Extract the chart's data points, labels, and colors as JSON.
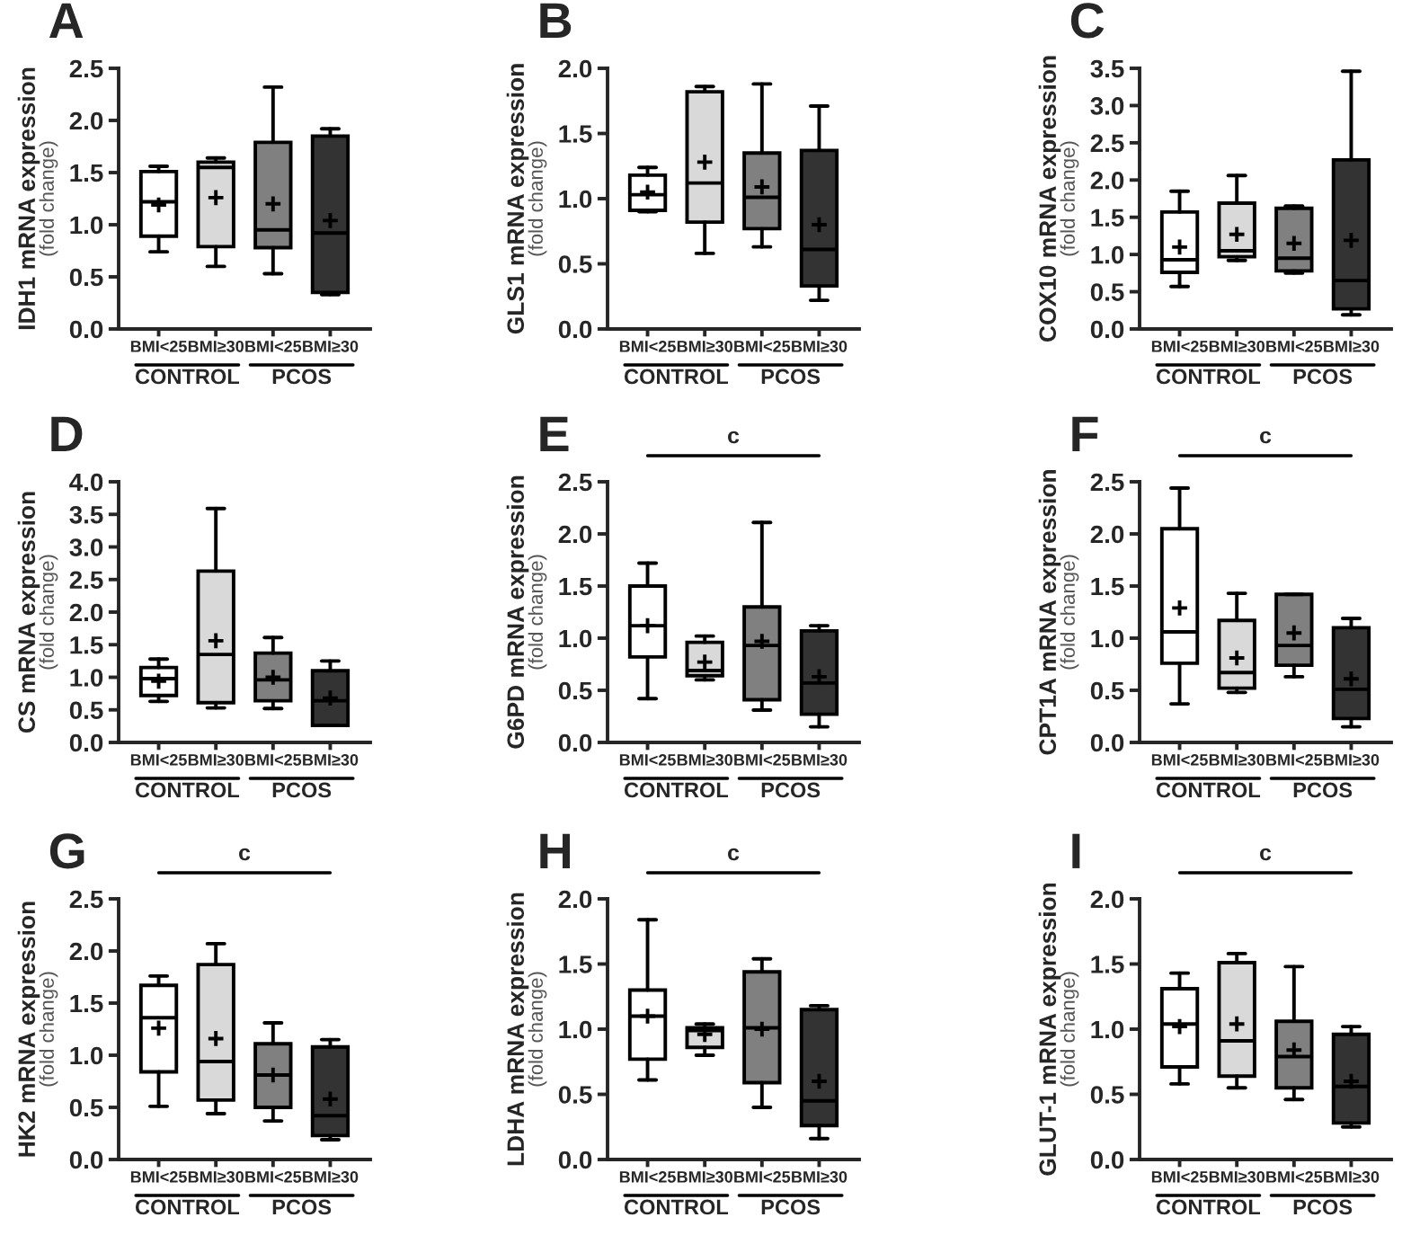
{
  "chart_data": [
    {
      "type": "box",
      "title": "A",
      "ylabel": "IDH1 mRNA expression\n(fold change)",
      "categories": [
        "BMI<25",
        "BMI≥30",
        "BMI<25",
        "BMI≥30"
      ],
      "colors": [
        "#ffffff",
        "#d9d9d9",
        "#808080",
        "#333333"
      ],
      "ylim": [
        0,
        2.5
      ],
      "yticks": [
        {
          "value": 0,
          "label": "0.0"
        },
        0.5,
        {
          "value": 1,
          "label": "1.0"
        },
        1.5,
        {
          "value": 2,
          "label": "2.0"
        },
        2.5
      ],
      "annotations": [
        "CONTROL",
        "PCOS"
      ],
      "boxes": [
        {
          "low": 0.74,
          "q1": 0.89,
          "median": 1.22,
          "q3": 1.51,
          "high": 1.56,
          "mean": 1.19
        },
        {
          "low": 0.6,
          "q1": 0.79,
          "median": 1.55,
          "q3": 1.6,
          "high": 1.64,
          "mean": 1.26
        },
        {
          "low": 0.53,
          "q1": 0.78,
          "median": 0.95,
          "q3": 1.79,
          "high": 2.32,
          "mean": 1.2
        },
        {
          "low": 0.33,
          "q1": 0.35,
          "median": 0.92,
          "q3": 1.85,
          "high": 1.92,
          "mean": 1.04
        }
      ]
    },
    {
      "type": "box",
      "title": "B",
      "ylabel": "GLS1 mRNA expression\n(fold change)",
      "categories": [
        "BMI<25",
        "BMI≥30",
        "BMI<25",
        "BMI≥30"
      ],
      "colors": [
        "#ffffff",
        "#d9d9d9",
        "#808080",
        "#333333"
      ],
      "ylim": [
        0,
        2.0
      ],
      "yticks": [
        {
          "value": 0,
          "label": "0.0"
        },
        0.5,
        {
          "value": 1,
          "label": "1.0"
        },
        1.5,
        {
          "value": 2,
          "label": "2.0"
        }
      ],
      "annotations": [
        "CONTROL",
        "PCOS"
      ],
      "boxes": [
        {
          "low": 0.9,
          "q1": 0.91,
          "median": 1.03,
          "q3": 1.18,
          "high": 1.24,
          "mean": 1.05
        },
        {
          "low": 0.58,
          "q1": 0.82,
          "median": 1.12,
          "q3": 1.82,
          "high": 1.86,
          "mean": 1.28
        },
        {
          "low": 0.63,
          "q1": 0.77,
          "median": 1.01,
          "q3": 1.35,
          "high": 1.88,
          "mean": 1.09
        },
        {
          "low": 0.22,
          "q1": 0.33,
          "median": 0.61,
          "q3": 1.37,
          "high": 1.71,
          "mean": 0.8
        }
      ]
    },
    {
      "type": "box",
      "title": "C",
      "ylabel": "COX10 mRNA expression\n(fold change)",
      "categories": [
        "BMI<25",
        "BMI≥30",
        "BMI<25",
        "BMI≥30"
      ],
      "colors": [
        "#ffffff",
        "#d9d9d9",
        "#808080",
        "#333333"
      ],
      "ylim": [
        0,
        3.5
      ],
      "yticks": [
        {
          "value": 0,
          "label": "0.0"
        },
        0.5,
        {
          "value": 1,
          "label": "1.0"
        },
        1.5,
        {
          "value": 2,
          "label": "2.0"
        },
        2.5,
        {
          "value": 3,
          "label": "3.0"
        },
        3.5
      ],
      "annotations": [
        "CONTROL",
        "PCOS"
      ],
      "boxes": [
        {
          "low": 0.57,
          "q1": 0.76,
          "median": 0.93,
          "q3": 1.57,
          "high": 1.85,
          "mean": 1.1
        },
        {
          "low": 0.92,
          "q1": 0.97,
          "median": 1.05,
          "q3": 1.69,
          "high": 2.06,
          "mean": 1.27
        },
        {
          "low": 0.75,
          "q1": 0.78,
          "median": 0.95,
          "q3": 1.62,
          "high": 1.65,
          "mean": 1.15
        },
        {
          "low": 0.19,
          "q1": 0.27,
          "median": 0.65,
          "q3": 2.27,
          "high": 3.46,
          "mean": 1.19
        }
      ]
    },
    {
      "type": "box",
      "title": "D",
      "ylabel": "CS mRNA expression\n(fold change)",
      "categories": [
        "BMI<25",
        "BMI≥30",
        "BMI<25",
        "BMI≥30"
      ],
      "colors": [
        "#ffffff",
        "#d9d9d9",
        "#808080",
        "#333333"
      ],
      "ylim": [
        0,
        4.0
      ],
      "yticks": [
        {
          "value": 0,
          "label": "0.0"
        },
        0.5,
        {
          "value": 1,
          "label": "1.0"
        },
        1.5,
        {
          "value": 2,
          "label": "2.0"
        },
        2.5,
        {
          "value": 3,
          "label": "3.0"
        },
        3.5,
        {
          "value": 4,
          "label": "4.0"
        }
      ],
      "annotations": [
        "CONTROL",
        "PCOS"
      ],
      "boxes": [
        {
          "low": 0.63,
          "q1": 0.72,
          "median": 0.98,
          "q3": 1.15,
          "high": 1.28,
          "mean": 0.94
        },
        {
          "low": 0.53,
          "q1": 0.61,
          "median": 1.35,
          "q3": 2.63,
          "high": 3.59,
          "mean": 1.56
        },
        {
          "low": 0.52,
          "q1": 0.64,
          "median": 0.96,
          "q3": 1.37,
          "high": 1.61,
          "mean": 1.0
        },
        {
          "low": 0.26,
          "q1": 0.26,
          "median": 0.64,
          "q3": 1.1,
          "high": 1.25,
          "mean": 0.68
        }
      ]
    },
    {
      "type": "box",
      "title": "E",
      "ylabel": "G6PD mRNA expression\n(fold change)",
      "categories": [
        "BMI<25",
        "BMI≥30",
        "BMI<25",
        "BMI≥30"
      ],
      "colors": [
        "#ffffff",
        "#d9d9d9",
        "#808080",
        "#333333"
      ],
      "ylim": [
        0,
        2.5
      ],
      "yticks": [
        {
          "value": 0,
          "label": "0.0"
        },
        0.5,
        {
          "value": 1,
          "label": "1.0"
        },
        1.5,
        {
          "value": 2,
          "label": "2.0"
        },
        2.5
      ],
      "annotations": [
        "CONTROL",
        "PCOS",
        "c"
      ],
      "boxes": [
        {
          "low": 0.42,
          "q1": 0.82,
          "median": 1.12,
          "q3": 1.5,
          "high": 1.72,
          "mean": 1.12
        },
        {
          "low": 0.6,
          "q1": 0.64,
          "median": 0.69,
          "q3": 0.96,
          "high": 1.02,
          "mean": 0.77
        },
        {
          "low": 0.31,
          "q1": 0.41,
          "median": 0.93,
          "q3": 1.3,
          "high": 2.11,
          "mean": 0.97
        },
        {
          "low": 0.15,
          "q1": 0.27,
          "median": 0.57,
          "q3": 1.07,
          "high": 1.12,
          "mean": 0.63
        }
      ]
    },
    {
      "type": "box",
      "title": "F",
      "ylabel": "CPT1A mRNA expression\n(fold change)",
      "categories": [
        "BMI<25",
        "BMI≥30",
        "BMI<25",
        "BMI≥30"
      ],
      "colors": [
        "#ffffff",
        "#d9d9d9",
        "#808080",
        "#333333"
      ],
      "ylim": [
        0,
        2.5
      ],
      "yticks": [
        {
          "value": 0,
          "label": "0.0"
        },
        0.5,
        {
          "value": 1,
          "label": "1.0"
        },
        1.5,
        {
          "value": 2,
          "label": "2.0"
        },
        2.5
      ],
      "annotations": [
        "CONTROL",
        "PCOS",
        "c"
      ],
      "boxes": [
        {
          "low": 0.37,
          "q1": 0.76,
          "median": 1.06,
          "q3": 2.05,
          "high": 2.44,
          "mean": 1.29
        },
        {
          "low": 0.48,
          "q1": 0.52,
          "median": 0.67,
          "q3": 1.17,
          "high": 1.43,
          "mean": 0.81
        },
        {
          "low": 0.63,
          "q1": 0.74,
          "median": 0.93,
          "q3": 1.42,
          "high": 1.42,
          "mean": 1.05
        },
        {
          "low": 0.15,
          "q1": 0.23,
          "median": 0.51,
          "q3": 1.1,
          "high": 1.19,
          "mean": 0.61
        }
      ]
    },
    {
      "type": "box",
      "title": "G",
      "ylabel": "HK2 mRNA expression\n(fold change)",
      "categories": [
        "BMI<25",
        "BMI≥30",
        "BMI<25",
        "BMI≥30"
      ],
      "colors": [
        "#ffffff",
        "#d9d9d9",
        "#808080",
        "#333333"
      ],
      "ylim": [
        0,
        2.5
      ],
      "yticks": [
        {
          "value": 0,
          "label": "0.0"
        },
        0.5,
        {
          "value": 1,
          "label": "1.0"
        },
        1.5,
        {
          "value": 2,
          "label": "2.0"
        },
        2.5
      ],
      "annotations": [
        "CONTROL",
        "PCOS",
        "c"
      ],
      "boxes": [
        {
          "low": 0.51,
          "q1": 0.84,
          "median": 1.36,
          "q3": 1.67,
          "high": 1.76,
          "mean": 1.26
        },
        {
          "low": 0.44,
          "q1": 0.57,
          "median": 0.94,
          "q3": 1.87,
          "high": 2.07,
          "mean": 1.16
        },
        {
          "low": 0.37,
          "q1": 0.5,
          "median": 0.81,
          "q3": 1.11,
          "high": 1.31,
          "mean": 0.81
        },
        {
          "low": 0.19,
          "q1": 0.23,
          "median": 0.42,
          "q3": 1.08,
          "high": 1.15,
          "mean": 0.58
        }
      ]
    },
    {
      "type": "box",
      "title": "H",
      "ylabel": "LDHA mRNA expression\n(fold change)",
      "categories": [
        "BMI<25",
        "BMI≥30",
        "BMI<25",
        "BMI≥30"
      ],
      "colors": [
        "#ffffff",
        "#d9d9d9",
        "#808080",
        "#333333"
      ],
      "ylim": [
        0,
        2.0
      ],
      "yticks": [
        {
          "value": 0,
          "label": "0.0"
        },
        0.5,
        {
          "value": 1,
          "label": "1.0"
        },
        1.5,
        {
          "value": 2,
          "label": "2.0"
        }
      ],
      "annotations": [
        "CONTROL",
        "PCOS",
        "c"
      ],
      "boxes": [
        {
          "low": 0.61,
          "q1": 0.77,
          "median": 1.1,
          "q3": 1.3,
          "high": 1.84,
          "mean": 1.1
        },
        {
          "low": 0.8,
          "q1": 0.86,
          "median": 0.99,
          "q3": 1.01,
          "high": 1.04,
          "mean": 0.96
        },
        {
          "low": 0.4,
          "q1": 0.59,
          "median": 1.01,
          "q3": 1.44,
          "high": 1.54,
          "mean": 1.0
        },
        {
          "low": 0.16,
          "q1": 0.26,
          "median": 0.45,
          "q3": 1.15,
          "high": 1.18,
          "mean": 0.6
        }
      ]
    },
    {
      "type": "box",
      "title": "I",
      "ylabel": "GLUT-1 mRNA expression\n(fold change)",
      "categories": [
        "BMI<25",
        "BMI≥30",
        "BMI<25",
        "BMI≥30"
      ],
      "colors": [
        "#ffffff",
        "#d9d9d9",
        "#808080",
        "#333333"
      ],
      "ylim": [
        0,
        2.0
      ],
      "yticks": [
        {
          "value": 0,
          "label": "0.0"
        },
        0.5,
        {
          "value": 1,
          "label": "1.0"
        },
        1.5,
        {
          "value": 2,
          "label": "2.0"
        }
      ],
      "annotations": [
        "CONTROL",
        "PCOS",
        "c"
      ],
      "boxes": [
        {
          "low": 0.58,
          "q1": 0.71,
          "median": 1.04,
          "q3": 1.31,
          "high": 1.43,
          "mean": 1.02
        },
        {
          "low": 0.55,
          "q1": 0.64,
          "median": 0.91,
          "q3": 1.51,
          "high": 1.58,
          "mean": 1.04
        },
        {
          "low": 0.46,
          "q1": 0.55,
          "median": 0.79,
          "q3": 1.06,
          "high": 1.48,
          "mean": 0.84
        },
        {
          "low": 0.25,
          "q1": 0.28,
          "median": 0.56,
          "q3": 0.96,
          "high": 1.02,
          "mean": 0.6
        }
      ]
    }
  ]
}
